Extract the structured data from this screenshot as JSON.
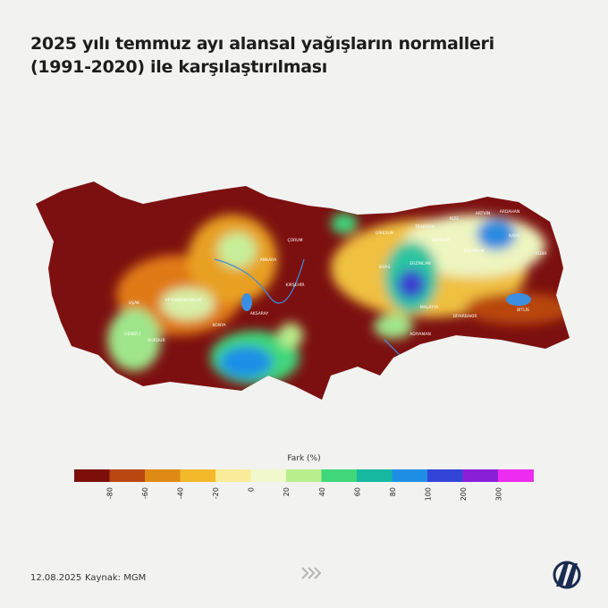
{
  "header": {
    "title_lines": [
      "2025 yılı temmuz ayı alansal yağışların normalleri",
      "(1991-2020) ile karşılaştırılması"
    ]
  },
  "map": {
    "labels": [
      "ANKARA",
      "KONYA",
      "SİVAS",
      "ERZURUM",
      "TRABZON",
      "BAYBURT",
      "KARS",
      "ARDAHAN",
      "ARTVİN",
      "RİZE",
      "IĞDIR",
      "MALATYA",
      "DİYARBAKIR",
      "BİTLİS",
      "DENİZLİ",
      "UŞAK",
      "AFYONKARAHİSAR",
      "BURDUR",
      "AKSARAY",
      "KIRŞEHİR",
      "GİRESUN",
      "ÇORUM",
      "ERZİNCAN",
      "ADIYAMAN"
    ]
  },
  "legend": {
    "title": "Fark (%)",
    "ticks": [
      "-80",
      "-60",
      "-40",
      "-20",
      "0",
      "20",
      "40",
      "60",
      "80",
      "100",
      "200",
      "300"
    ]
  },
  "footer": {
    "date": "12.08.2025",
    "source": "Kaynak: MGM"
  }
}
